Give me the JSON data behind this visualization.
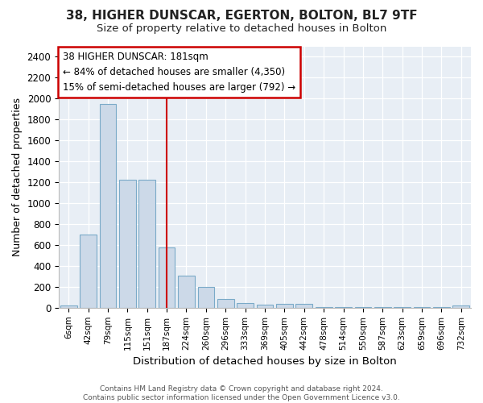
{
  "title1": "38, HIGHER DUNSCAR, EGERTON, BOLTON, BL7 9TF",
  "title2": "Size of property relative to detached houses in Bolton",
  "xlabel": "Distribution of detached houses by size in Bolton",
  "ylabel": "Number of detached properties",
  "bin_labels": [
    "6sqm",
    "42sqm",
    "79sqm",
    "115sqm",
    "151sqm",
    "187sqm",
    "224sqm",
    "260sqm",
    "296sqm",
    "333sqm",
    "369sqm",
    "405sqm",
    "442sqm",
    "478sqm",
    "514sqm",
    "550sqm",
    "587sqm",
    "623sqm",
    "659sqm",
    "696sqm",
    "732sqm"
  ],
  "bar_heights": [
    20,
    700,
    1950,
    1225,
    1225,
    575,
    305,
    200,
    80,
    45,
    30,
    35,
    35,
    5,
    5,
    5,
    5,
    5,
    5,
    5,
    20
  ],
  "bar_color": "#ccd9e8",
  "bar_edge_color": "#7aaac8",
  "vline_bin_index": 5,
  "annotation_text": "38 HIGHER DUNSCAR: 181sqm\n← 84% of detached houses are smaller (4,350)\n15% of semi-detached houses are larger (792) →",
  "annotation_box_color": "white",
  "annotation_box_edge_color": "#cc0000",
  "vline_color": "#cc0000",
  "footer_text": "Contains HM Land Registry data © Crown copyright and database right 2024.\nContains public sector information licensed under the Open Government Licence v3.0.",
  "ylim": [
    0,
    2500
  ],
  "yticks": [
    0,
    200,
    400,
    600,
    800,
    1000,
    1200,
    1400,
    1600,
    1800,
    2000,
    2200,
    2400
  ],
  "bg_color": "#ffffff",
  "plot_bg_color": "#e8eef5",
  "title1_fontsize": 11,
  "title2_fontsize": 9.5,
  "ylabel_fontsize": 9,
  "xlabel_fontsize": 9.5
}
